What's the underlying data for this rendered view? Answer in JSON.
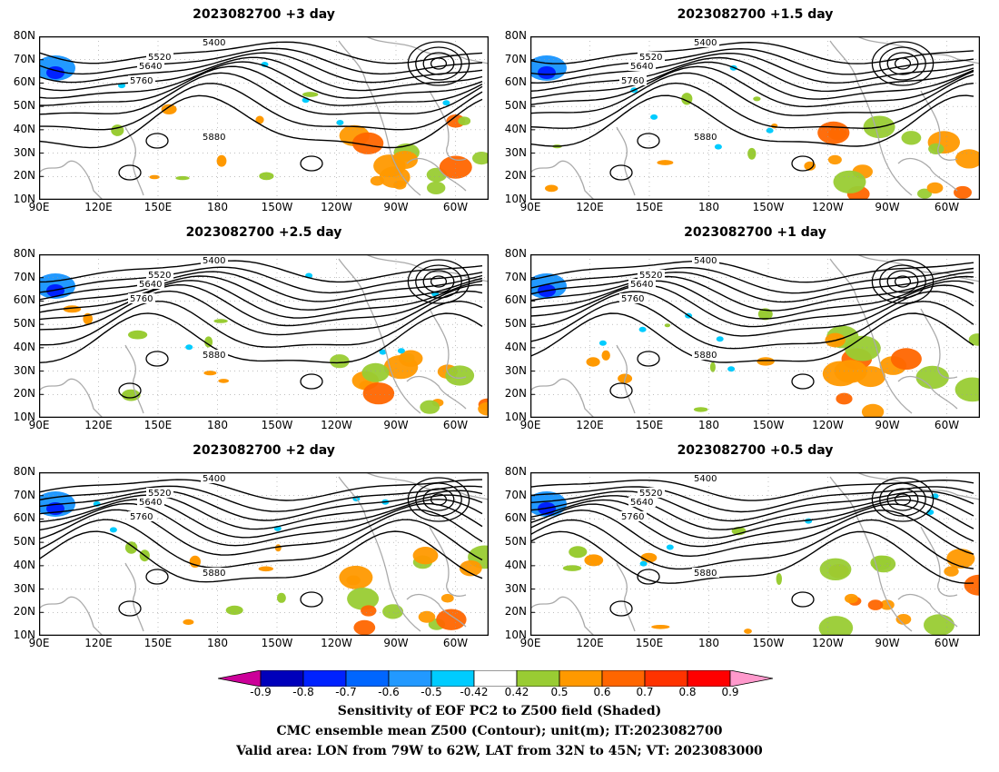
{
  "panels": [
    {
      "title": "2023082700  +3 day"
    },
    {
      "title": "2023082700  +1.5 day"
    },
    {
      "title": "2023082700  +2.5 day"
    },
    {
      "title": "2023082700  +1 day"
    },
    {
      "title": "2023082700  +2 day"
    },
    {
      "title": "2023082700  +0.5 day"
    }
  ],
  "axes": {
    "lat_labels": [
      "80N",
      "70N",
      "60N",
      "50N",
      "40N",
      "30N",
      "20N",
      "10N"
    ],
    "lon_labels": [
      "90E",
      "120E",
      "150E",
      "180",
      "150W",
      "120W",
      "90W",
      "60W"
    ]
  },
  "contour_labels": [
    "5400",
    "5520",
    "5640",
    "5760",
    "5880"
  ],
  "colorbar": {
    "ticks": [
      "-0.9",
      "-0.8",
      "-0.7",
      "-0.6",
      "-0.5",
      "-0.42",
      "0.42",
      "0.5",
      "0.6",
      "0.7",
      "0.8",
      "0.9"
    ],
    "colors": [
      "#cc0099",
      "#0000bb",
      "#0022ff",
      "#0066ff",
      "#2299ff",
      "#00ccff",
      "#ffffff",
      "#99cc33",
      "#ff9900",
      "#ff6600",
      "#ff3300",
      "#ff0000",
      "#ff99cc"
    ]
  },
  "caption": {
    "line1": "Sensitivity of EOF PC2 to Z500 field (Shaded)",
    "line2": "CMC ensemble mean Z500 (Contour); unit(m); IT:2023082700",
    "line3": "Valid area: LON from 79W to 62W, LAT from 32N to 45N; VT: 2023083000"
  }
}
